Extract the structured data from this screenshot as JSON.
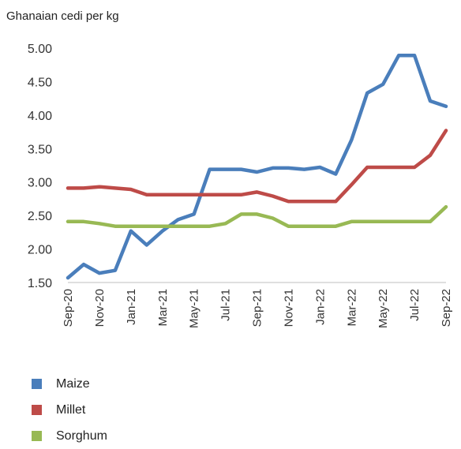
{
  "chart_data": {
    "type": "line",
    "ylabel": "Ghanaian cedi per kg",
    "ylim": [
      1.5,
      5.0
    ],
    "yticks": [
      "1.50",
      "2.00",
      "2.50",
      "3.00",
      "3.50",
      "4.00",
      "4.50",
      "5.00"
    ],
    "x": [
      "Sep-20",
      "Oct-20",
      "Nov-20",
      "Dec-20",
      "Jan-21",
      "Feb-21",
      "Mar-21",
      "Apr-21",
      "May-21",
      "Jun-21",
      "Jul-21",
      "Aug-21",
      "Sep-21",
      "Oct-21",
      "Nov-21",
      "Dec-21",
      "Jan-22",
      "Feb-22",
      "Mar-22",
      "Apr-22",
      "May-22",
      "Jun-22",
      "Jul-22",
      "Aug-22",
      "Sep-22"
    ],
    "xtick_labels": [
      "Sep-20",
      "Nov-20",
      "Jan-21",
      "Mar-21",
      "May-21",
      "Jul-21",
      "Sep-21",
      "Nov-21",
      "Jan-22",
      "Mar-22",
      "May-22",
      "Jul-22",
      "Sep-22"
    ],
    "series": [
      {
        "name": "Maize",
        "color": "#4a7ebb",
        "values": [
          1.57,
          1.77,
          1.64,
          1.68,
          2.27,
          2.06,
          2.27,
          2.44,
          2.52,
          3.19,
          3.19,
          3.19,
          3.15,
          3.21,
          3.21,
          3.19,
          3.22,
          3.12,
          3.63,
          4.33,
          4.46,
          4.89,
          4.89,
          4.21,
          4.13
        ]
      },
      {
        "name": "Millet",
        "color": "#be4b48",
        "values": [
          2.91,
          2.91,
          2.93,
          2.91,
          2.89,
          2.81,
          2.81,
          2.81,
          2.81,
          2.81,
          2.81,
          2.81,
          2.85,
          2.79,
          2.71,
          2.71,
          2.71,
          2.71,
          2.96,
          3.22,
          3.22,
          3.22,
          3.22,
          3.4,
          3.77
        ]
      },
      {
        "name": "Sorghum",
        "color": "#98b954",
        "values": [
          2.41,
          2.41,
          2.38,
          2.34,
          2.34,
          2.34,
          2.34,
          2.34,
          2.34,
          2.34,
          2.38,
          2.52,
          2.52,
          2.46,
          2.34,
          2.34,
          2.34,
          2.34,
          2.41,
          2.41,
          2.41,
          2.41,
          2.41,
          2.41,
          2.63
        ]
      }
    ],
    "legend_position": "bottom-left",
    "grid": false
  }
}
